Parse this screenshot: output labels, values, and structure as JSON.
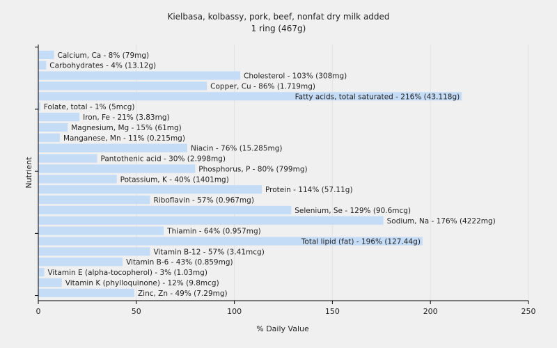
{
  "chart_data": {
    "type": "bar",
    "orientation": "horizontal",
    "title": "Kielbasa, kolbassy, pork, beef, nonfat dry milk added",
    "subtitle": "1 ring (467g)",
    "xlabel": "% Daily Value",
    "ylabel": "Nutrient",
    "xlim": [
      0,
      250
    ],
    "xticks": [
      0,
      50,
      100,
      150,
      200,
      250
    ],
    "grid": true,
    "bar_color": "#c5dcf7",
    "categories": [
      "Calcium, Ca",
      "Carbohydrates",
      "Cholesterol",
      "Copper, Cu",
      "Fatty acids, total saturated",
      "Folate, total",
      "Iron, Fe",
      "Magnesium, Mg",
      "Manganese, Mn",
      "Niacin",
      "Pantothenic acid",
      "Phosphorus, P",
      "Potassium, K",
      "Protein",
      "Riboflavin",
      "Selenium, Se",
      "Sodium, Na",
      "Thiamin",
      "Total lipid (fat)",
      "Vitamin B-12",
      "Vitamin B-6",
      "Vitamin E (alpha-tocopherol)",
      "Vitamin K (phylloquinone)",
      "Zinc, Zn"
    ],
    "values": [
      8,
      4,
      103,
      86,
      216,
      1,
      21,
      15,
      11,
      76,
      30,
      80,
      40,
      114,
      57,
      129,
      176,
      64,
      196,
      57,
      43,
      3,
      12,
      49
    ],
    "labels": [
      "Calcium, Ca - 8% (79mg)",
      "Carbohydrates - 4% (13.12g)",
      "Cholesterol - 103% (308mg)",
      "Copper, Cu - 86% (1.719mg)",
      "Fatty acids, total saturated - 216% (43.118g)",
      "Folate, total - 1% (5mcg)",
      "Iron, Fe - 21% (3.83mg)",
      "Magnesium, Mg - 15% (61mg)",
      "Manganese, Mn - 11% (0.215mg)",
      "Niacin - 76% (15.285mg)",
      "Pantothenic acid - 30% (2.998mg)",
      "Phosphorus, P - 80% (799mg)",
      "Potassium, K - 40% (1401mg)",
      "Protein - 114% (57.11g)",
      "Riboflavin - 57% (0.967mg)",
      "Selenium, Se - 129% (90.6mcg)",
      "Sodium, Na - 176% (4222mg)",
      "Thiamin - 64% (0.957mg)",
      "Total lipid (fat) - 196% (127.44g)",
      "Vitamin B-12 - 57% (3.41mcg)",
      "Vitamin B-6 - 43% (0.859mg)",
      "Vitamin E (alpha-tocopherol) - 3% (1.03mg)",
      "Vitamin K (phylloquinone) - 12% (9.8mcg)",
      "Zinc, Zn - 49% (7.29mg)"
    ]
  }
}
